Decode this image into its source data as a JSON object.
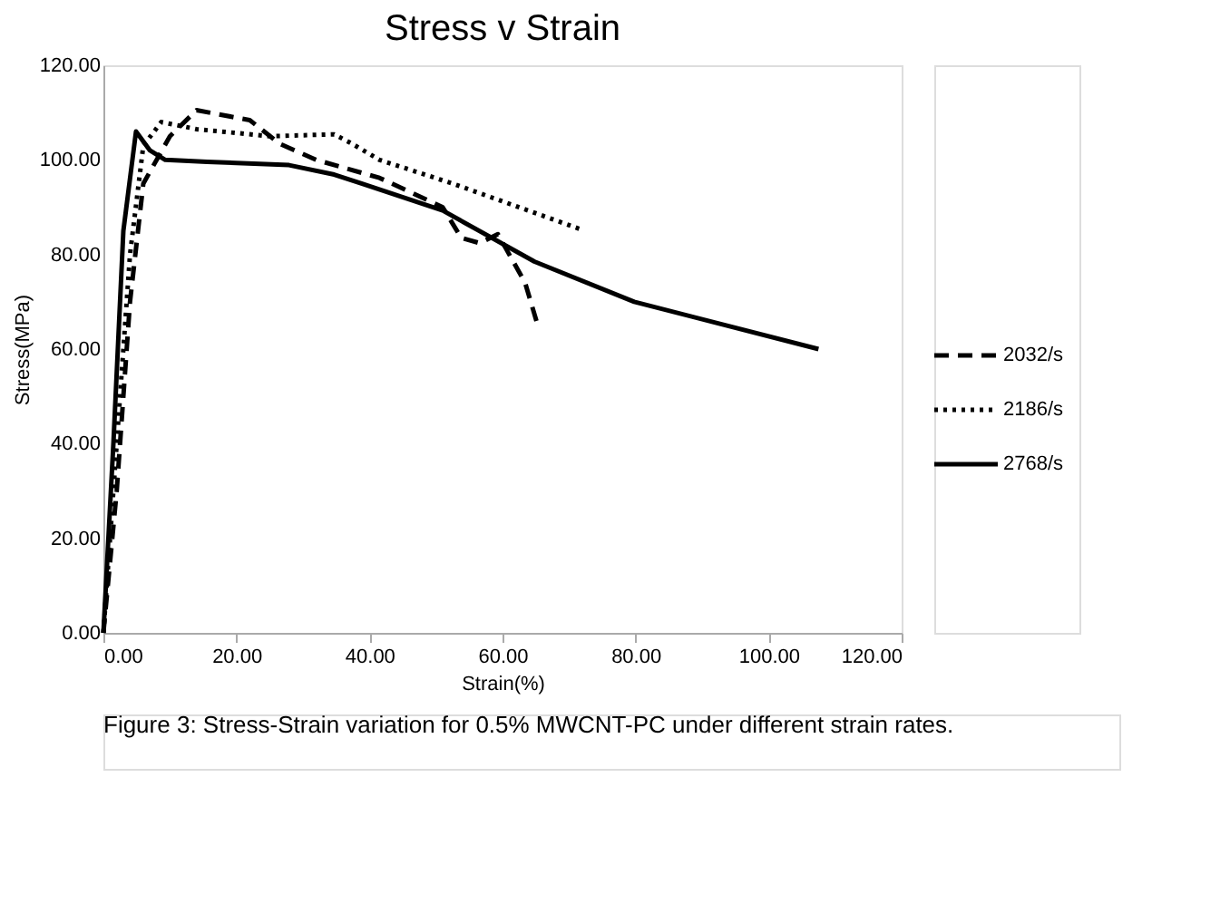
{
  "chart_data": {
    "type": "line",
    "title": "Stress v Strain",
    "xlabel": "Strain(%)",
    "ylabel": "Stress(MPa)",
    "xlim": [
      0,
      120
    ],
    "xticks": [
      {
        "value": 0,
        "label": "0.00"
      },
      {
        "value": 20,
        "label": "20.00"
      },
      {
        "value": 40,
        "label": "40.00"
      },
      {
        "value": 60,
        "label": "60.00"
      },
      {
        "value": 80,
        "label": "80.00"
      },
      {
        "value": 100,
        "label": "100.00"
      },
      {
        "value": 120,
        "label": "120.00"
      }
    ],
    "ylim": [
      0,
      120
    ],
    "yticks": [
      {
        "value": 0,
        "label": "0.00"
      },
      {
        "value": 20,
        "label": "20.00"
      },
      {
        "value": 40,
        "label": "40.00"
      },
      {
        "value": 60,
        "label": "60.00"
      },
      {
        "value": 80,
        "label": "80.00"
      },
      {
        "value": 100,
        "label": "100.00"
      },
      {
        "value": 120,
        "label": "120.00"
      }
    ],
    "grid": false,
    "legend": "right",
    "marker": "none",
    "series": [
      {
        "name": "2032/s",
        "color": "#000000",
        "line_style": "dashed",
        "x": [
          0,
          2,
          4,
          6,
          10,
          14,
          22,
          26.5,
          32,
          41.5,
          51,
          53.8,
          56.6,
          59.3,
          63.4,
          65.3
        ],
        "values": [
          0,
          30,
          70,
          95,
          105,
          110.5,
          108.4,
          103.4,
          100,
          96.2,
          90,
          83.5,
          82.4,
          84.3,
          74,
          65
        ]
      },
      {
        "name": "2186/s",
        "color": "#000000",
        "line_style": "dotted",
        "x": [
          0,
          2,
          4,
          6,
          8.7,
          14,
          25,
          34.7,
          37.4,
          41.5,
          52.5,
          71.6
        ],
        "values": [
          0,
          40,
          80,
          103,
          108,
          106.5,
          105,
          105.4,
          103.4,
          100,
          95,
          85.4
        ]
      },
      {
        "name": "2768/s",
        "color": "#000000",
        "line_style": "solid",
        "x": [
          0,
          1.5,
          3,
          4.9,
          7,
          9.3,
          15.6,
          27.9,
          34.7,
          38.8,
          51,
          64.8,
          79.8,
          107.5
        ],
        "values": [
          0,
          40,
          85,
          106,
          102,
          100,
          99.6,
          98.9,
          96.9,
          95,
          89.3,
          78.5,
          70,
          60
        ]
      }
    ],
    "annotations": [
      "Figure 3: Stress-Strain variation for 0.5% MWCNT-PC under different strain rates."
    ]
  }
}
